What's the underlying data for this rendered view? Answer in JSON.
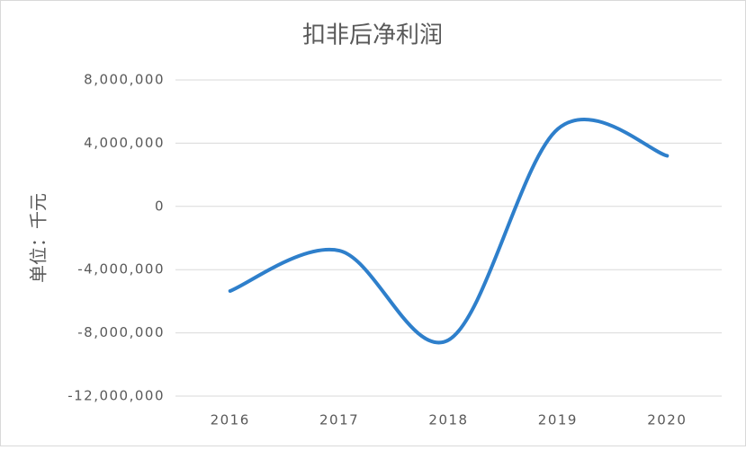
{
  "chart_data": {
    "type": "line",
    "title": "扣非后净利润",
    "y_label": "单位：千元",
    "categories": [
      "2016",
      "2017",
      "2018",
      "2019",
      "2020"
    ],
    "series": [
      {
        "name": "扣非后净利润",
        "color": "#2e7fcb",
        "values": [
          -5350000,
          -2800000,
          -8450000,
          4900000,
          3200000
        ]
      }
    ],
    "ylim": [
      -12000000,
      8000000
    ],
    "yticks": [
      {
        "value": -12000000,
        "label": "-12,000,000"
      },
      {
        "value": -8000000,
        "label": "-8,000,000"
      },
      {
        "value": -4000000,
        "label": "-4,000,000"
      },
      0,
      {
        "value": 4000000,
        "label": "4,000,000"
      },
      {
        "value": 8000000,
        "label": "8,000,000"
      }
    ],
    "grid": true,
    "smooth": true
  }
}
